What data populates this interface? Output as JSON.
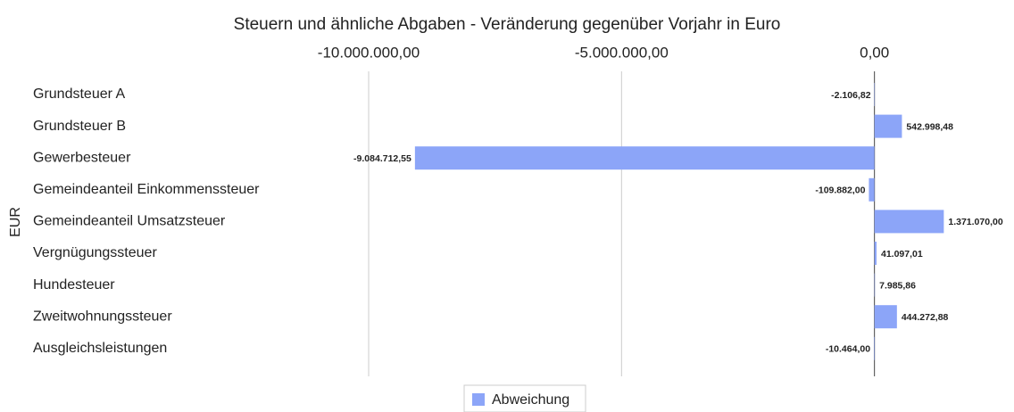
{
  "chart_data": {
    "type": "bar",
    "orientation": "horizontal",
    "title": "Steuern und ähnliche Abgaben - Veränderung gegenüber Vorjahr in Euro",
    "y_label": "EUR",
    "categories": [
      "Grundsteuer A",
      "Grundsteuer B",
      "Gewerbesteuer",
      "Gemeindeanteil Einkommenssteuer",
      "Gemeindeanteil Umsatzsteuer",
      "Vergnügungssteuer",
      "Hundesteuer",
      "Zweitwohnungssteuer",
      "Ausgleichsleistungen"
    ],
    "series": [
      {
        "name": "Abweichung",
        "color": "#8ca5f8",
        "values": [
          -2106.82,
          542998.48,
          -9084712.55,
          -109882.0,
          1371070.0,
          41097.01,
          7985.86,
          444272.88,
          -10464.0
        ],
        "value_labels": [
          "-2.106,82",
          "542.998,48",
          "-9.084.712,55",
          "-109.882,00",
          "1.371.070,00",
          "41.097,01",
          "7.985,86",
          "444.272,88",
          "-10.464,00"
        ]
      }
    ],
    "xlim": [
      -10000000,
      2000000
    ],
    "xticks": [
      {
        "value": -10000000,
        "label": "-10.000.000,00"
      },
      {
        "value": -5000000,
        "label": "-5.000.000,00"
      },
      {
        "value": 0,
        "label": "0,00"
      }
    ],
    "grid": true,
    "legend": "bottom"
  }
}
